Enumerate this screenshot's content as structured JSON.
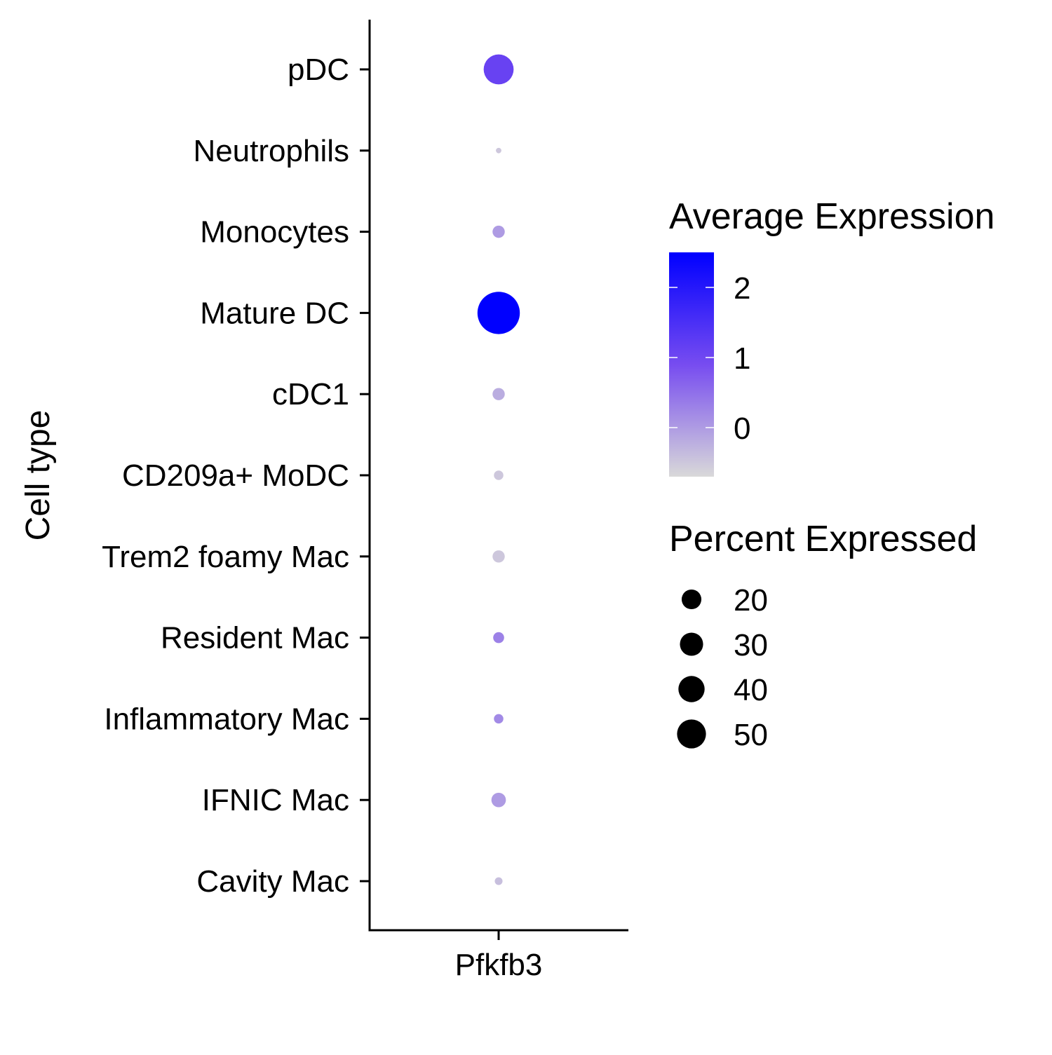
{
  "chart_data": {
    "type": "dot",
    "title": "",
    "xlabel": "",
    "ylabel": "Cell type",
    "x_categories": [
      "Pfkfb3"
    ],
    "y_categories": [
      "pDC",
      "Neutrophils",
      "Monocytes",
      "Mature DC",
      "cDC1",
      "CD209a+ MoDC",
      "Trem2 foamy Mac",
      "Resident Mac",
      "Inflammatory Mac",
      "IFNIC Mac",
      "Cavity Mac"
    ],
    "points": [
      {
        "gene": "Pfkfb3",
        "cell_type": "pDC",
        "avg_expression": 1.1,
        "pct_expressed": 30
      },
      {
        "gene": "Pfkfb3",
        "cell_type": "Neutrophils",
        "avg_expression": -0.5,
        "pct_expressed": 1
      },
      {
        "gene": "Pfkfb3",
        "cell_type": "Monocytes",
        "avg_expression": 0.0,
        "pct_expressed": 5
      },
      {
        "gene": "Pfkfb3",
        "cell_type": "Mature DC",
        "avg_expression": 2.5,
        "pct_expressed": 60
      },
      {
        "gene": "Pfkfb3",
        "cell_type": "cDC1",
        "avg_expression": -0.2,
        "pct_expressed": 5
      },
      {
        "gene": "Pfkfb3",
        "cell_type": "CD209a+ MoDC",
        "avg_expression": -0.5,
        "pct_expressed": 3
      },
      {
        "gene": "Pfkfb3",
        "cell_type": "Trem2 foamy Mac",
        "avg_expression": -0.5,
        "pct_expressed": 5
      },
      {
        "gene": "Pfkfb3",
        "cell_type": "Resident Mac",
        "avg_expression": 0.3,
        "pct_expressed": 4
      },
      {
        "gene": "Pfkfb3",
        "cell_type": "Inflammatory Mac",
        "avg_expression": 0.2,
        "pct_expressed": 3
      },
      {
        "gene": "Pfkfb3",
        "cell_type": "IFNIC Mac",
        "avg_expression": 0.0,
        "pct_expressed": 7
      },
      {
        "gene": "Pfkfb3",
        "cell_type": "Cavity Mac",
        "avg_expression": -0.4,
        "pct_expressed": 2
      }
    ],
    "color_legend": {
      "title": "Average Expression",
      "range": [
        -0.7,
        2.5
      ],
      "ticks": [
        0,
        1,
        2
      ],
      "low_color": "#d9d9d9",
      "high_color": "#0000ff"
    },
    "size_legend": {
      "title": "Percent Expressed",
      "values": [
        20,
        30,
        40,
        50
      ]
    },
    "grid": false,
    "legend_position": "right"
  }
}
